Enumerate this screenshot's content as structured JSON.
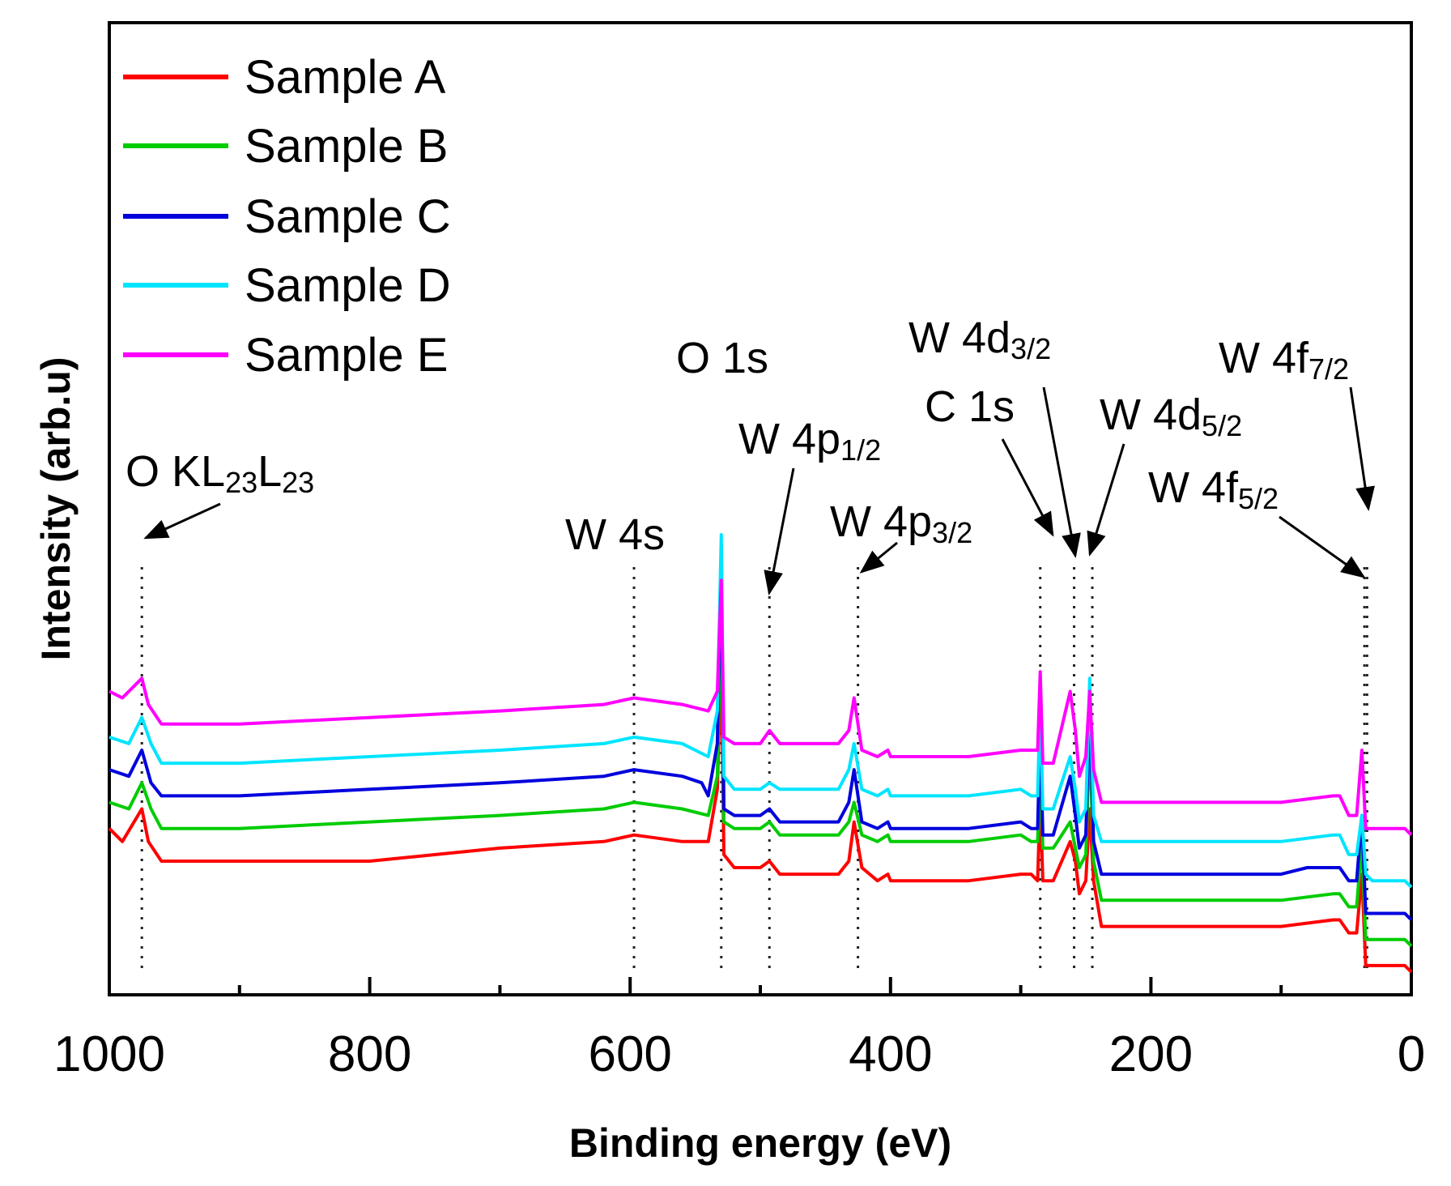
{
  "chart_data": {
    "type": "line",
    "title": "",
    "xlabel": "Binding energy (eV)",
    "ylabel": "Intensity (arb.u)",
    "xlim": [
      1000,
      0
    ],
    "x_reversed": true,
    "ylim": [
      0,
      100
    ],
    "x_ticks": [
      "1000",
      "800",
      "600",
      "400",
      "200",
      "0"
    ],
    "grid": false,
    "legend_position": "top-left",
    "series": [
      {
        "name": "Sample A",
        "color": "#ff0000",
        "points": [
          [
            1000,
            22
          ],
          [
            990,
            20
          ],
          [
            975,
            25
          ],
          [
            970,
            20
          ],
          [
            960,
            17
          ],
          [
            900,
            17
          ],
          [
            800,
            17
          ],
          [
            700,
            19
          ],
          [
            620,
            20
          ],
          [
            597,
            21
          ],
          [
            560,
            20
          ],
          [
            540,
            20
          ],
          [
            533,
            28
          ],
          [
            530,
            49
          ],
          [
            528,
            18
          ],
          [
            520,
            16
          ],
          [
            500,
            16
          ],
          [
            493,
            17
          ],
          [
            485,
            15
          ],
          [
            460,
            15
          ],
          [
            440,
            15
          ],
          [
            432,
            17
          ],
          [
            428,
            23
          ],
          [
            422,
            16
          ],
          [
            410,
            14
          ],
          [
            402,
            15
          ],
          [
            400,
            14
          ],
          [
            380,
            14
          ],
          [
            340,
            14
          ],
          [
            300,
            15
          ],
          [
            292,
            15
          ],
          [
            287,
            14
          ],
          [
            285,
            27
          ],
          [
            283,
            14
          ],
          [
            275,
            14
          ],
          [
            262,
            20
          ],
          [
            258,
            17
          ],
          [
            255,
            12
          ],
          [
            250,
            14
          ],
          [
            247,
            25
          ],
          [
            244,
            14
          ],
          [
            238,
            7
          ],
          [
            230,
            7
          ],
          [
            200,
            7
          ],
          [
            150,
            7
          ],
          [
            100,
            7
          ],
          [
            60,
            8
          ],
          [
            55,
            8
          ],
          [
            48,
            6
          ],
          [
            42,
            6
          ],
          [
            38,
            15
          ],
          [
            35,
            1
          ],
          [
            30,
            1
          ],
          [
            15,
            1
          ],
          [
            5,
            1
          ],
          [
            0,
            0
          ]
        ]
      },
      {
        "name": "Sample B",
        "color": "#00cc00",
        "points": [
          [
            1000,
            26
          ],
          [
            985,
            25
          ],
          [
            975,
            29
          ],
          [
            968,
            25
          ],
          [
            960,
            22
          ],
          [
            900,
            22
          ],
          [
            800,
            23
          ],
          [
            700,
            24
          ],
          [
            620,
            25
          ],
          [
            597,
            26
          ],
          [
            560,
            25
          ],
          [
            540,
            24
          ],
          [
            533,
            30
          ],
          [
            530,
            58
          ],
          [
            528,
            23
          ],
          [
            520,
            22
          ],
          [
            500,
            22
          ],
          [
            493,
            23
          ],
          [
            485,
            21
          ],
          [
            460,
            21
          ],
          [
            440,
            21
          ],
          [
            432,
            23
          ],
          [
            428,
            26
          ],
          [
            422,
            21
          ],
          [
            410,
            20
          ],
          [
            402,
            21
          ],
          [
            400,
            20
          ],
          [
            380,
            20
          ],
          [
            340,
            20
          ],
          [
            300,
            21
          ],
          [
            292,
            20
          ],
          [
            287,
            20
          ],
          [
            285,
            31
          ],
          [
            283,
            19
          ],
          [
            275,
            19
          ],
          [
            262,
            23
          ],
          [
            258,
            19
          ],
          [
            255,
            16
          ],
          [
            250,
            18
          ],
          [
            247,
            36
          ],
          [
            244,
            17
          ],
          [
            238,
            11
          ],
          [
            230,
            11
          ],
          [
            200,
            11
          ],
          [
            150,
            11
          ],
          [
            100,
            11
          ],
          [
            60,
            12
          ],
          [
            55,
            12
          ],
          [
            48,
            10
          ],
          [
            42,
            10
          ],
          [
            38,
            20
          ],
          [
            35,
            5
          ],
          [
            30,
            5
          ],
          [
            15,
            5
          ],
          [
            5,
            5
          ],
          [
            0,
            4
          ]
        ]
      },
      {
        "name": "Sample C",
        "color": "#0000dd",
        "points": [
          [
            1000,
            31
          ],
          [
            985,
            30
          ],
          [
            975,
            34
          ],
          [
            968,
            29
          ],
          [
            960,
            27
          ],
          [
            900,
            27
          ],
          [
            800,
            28
          ],
          [
            700,
            29
          ],
          [
            620,
            30
          ],
          [
            597,
            31
          ],
          [
            560,
            30
          ],
          [
            545,
            29
          ],
          [
            540,
            27
          ],
          [
            533,
            35
          ],
          [
            530,
            65
          ],
          [
            528,
            25
          ],
          [
            520,
            24
          ],
          [
            500,
            24
          ],
          [
            493,
            25
          ],
          [
            485,
            23
          ],
          [
            460,
            23
          ],
          [
            440,
            23
          ],
          [
            432,
            26
          ],
          [
            428,
            31
          ],
          [
            422,
            23
          ],
          [
            410,
            22
          ],
          [
            402,
            23
          ],
          [
            400,
            22
          ],
          [
            380,
            22
          ],
          [
            340,
            22
          ],
          [
            300,
            23
          ],
          [
            292,
            22
          ],
          [
            287,
            22
          ],
          [
            285,
            37
          ],
          [
            283,
            21
          ],
          [
            275,
            21
          ],
          [
            262,
            30
          ],
          [
            258,
            24
          ],
          [
            255,
            19
          ],
          [
            250,
            21
          ],
          [
            247,
            41
          ],
          [
            244,
            20
          ],
          [
            238,
            15
          ],
          [
            230,
            15
          ],
          [
            200,
            15
          ],
          [
            150,
            15
          ],
          [
            100,
            15
          ],
          [
            80,
            16
          ],
          [
            60,
            16
          ],
          [
            55,
            16
          ],
          [
            48,
            14
          ],
          [
            42,
            14
          ],
          [
            38,
            24
          ],
          [
            35,
            9
          ],
          [
            30,
            9
          ],
          [
            15,
            9
          ],
          [
            5,
            9
          ],
          [
            0,
            8
          ]
        ]
      },
      {
        "name": "Sample D",
        "color": "#00e5ff",
        "points": [
          [
            1000,
            36
          ],
          [
            985,
            35
          ],
          [
            975,
            39
          ],
          [
            968,
            35
          ],
          [
            960,
            32
          ],
          [
            900,
            32
          ],
          [
            800,
            33
          ],
          [
            700,
            34
          ],
          [
            620,
            35
          ],
          [
            597,
            36
          ],
          [
            560,
            35
          ],
          [
            540,
            33
          ],
          [
            533,
            40
          ],
          [
            530,
            67
          ],
          [
            528,
            30
          ],
          [
            520,
            28
          ],
          [
            500,
            28
          ],
          [
            493,
            29
          ],
          [
            485,
            28
          ],
          [
            460,
            28
          ],
          [
            440,
            28
          ],
          [
            432,
            31
          ],
          [
            428,
            35
          ],
          [
            422,
            28
          ],
          [
            410,
            27
          ],
          [
            402,
            28
          ],
          [
            400,
            27
          ],
          [
            380,
            27
          ],
          [
            340,
            27
          ],
          [
            300,
            28
          ],
          [
            292,
            27
          ],
          [
            287,
            27
          ],
          [
            285,
            42
          ],
          [
            283,
            25
          ],
          [
            275,
            25
          ],
          [
            262,
            33
          ],
          [
            258,
            28
          ],
          [
            255,
            23
          ],
          [
            250,
            25
          ],
          [
            247,
            45
          ],
          [
            244,
            24
          ],
          [
            238,
            20
          ],
          [
            230,
            20
          ],
          [
            200,
            20
          ],
          [
            150,
            20
          ],
          [
            100,
            20
          ],
          [
            60,
            21
          ],
          [
            55,
            21
          ],
          [
            48,
            18
          ],
          [
            42,
            18
          ],
          [
            38,
            24
          ],
          [
            35,
            15
          ],
          [
            30,
            14
          ],
          [
            15,
            14
          ],
          [
            5,
            14
          ],
          [
            0,
            13
          ]
        ]
      },
      {
        "name": "Sample E",
        "color": "#ff00ff",
        "points": [
          [
            1000,
            43
          ],
          [
            990,
            42
          ],
          [
            975,
            45
          ],
          [
            970,
            41
          ],
          [
            960,
            38
          ],
          [
            900,
            38
          ],
          [
            800,
            39
          ],
          [
            700,
            40
          ],
          [
            620,
            41
          ],
          [
            597,
            42
          ],
          [
            560,
            41
          ],
          [
            540,
            40
          ],
          [
            533,
            43
          ],
          [
            530,
            60
          ],
          [
            528,
            36
          ],
          [
            520,
            35
          ],
          [
            500,
            35
          ],
          [
            493,
            37
          ],
          [
            485,
            35
          ],
          [
            460,
            35
          ],
          [
            440,
            35
          ],
          [
            432,
            37
          ],
          [
            428,
            42
          ],
          [
            422,
            34
          ],
          [
            410,
            33
          ],
          [
            402,
            34
          ],
          [
            400,
            33
          ],
          [
            380,
            33
          ],
          [
            340,
            33
          ],
          [
            300,
            34
          ],
          [
            292,
            34
          ],
          [
            287,
            34
          ],
          [
            285,
            46
          ],
          [
            283,
            32
          ],
          [
            275,
            32
          ],
          [
            262,
            43
          ],
          [
            258,
            37
          ],
          [
            255,
            30
          ],
          [
            250,
            33
          ],
          [
            247,
            43
          ],
          [
            244,
            31
          ],
          [
            238,
            26
          ],
          [
            230,
            26
          ],
          [
            200,
            26
          ],
          [
            150,
            26
          ],
          [
            100,
            26
          ],
          [
            60,
            27
          ],
          [
            55,
            27
          ],
          [
            48,
            24
          ],
          [
            42,
            24
          ],
          [
            38,
            34
          ],
          [
            35,
            22
          ],
          [
            30,
            22
          ],
          [
            15,
            22
          ],
          [
            5,
            22
          ],
          [
            0,
            21
          ]
        ]
      }
    ],
    "peak_markers": [
      {
        "label": "O KL23L23",
        "x": 975
      },
      {
        "label": "W 4s",
        "x": 597
      },
      {
        "label": "O 1s",
        "x": 530
      },
      {
        "label": "W 4p1/2",
        "x": 493
      },
      {
        "label": "W 4p3/2",
        "x": 425
      },
      {
        "label": "C 1s",
        "x": 285
      },
      {
        "label": "W 4d3/2",
        "x": 259
      },
      {
        "label": "W 4d5/2",
        "x": 245
      },
      {
        "label": "W 4f5/2",
        "x": 36
      },
      {
        "label": "W 4f7/2",
        "x": 34
      }
    ],
    "annotations": {
      "o_kll": {
        "main": "O KL",
        "sub1": "23",
        "mid": "L",
        "sub2": "23"
      },
      "w4s": "W 4s",
      "o1s": "O 1s",
      "w4p12": {
        "main": "W 4p",
        "sub": "1/2"
      },
      "w4p32": {
        "main": "W 4p",
        "sub": "3/2"
      },
      "c1s": "C 1s",
      "w4d32": {
        "main": "W 4d",
        "sub": "3/2"
      },
      "w4d52": {
        "main": "W 4d",
        "sub": "5/2"
      },
      "w4f52": {
        "main": "W 4f",
        "sub": "5/2"
      },
      "w4f72": {
        "main": "W 4f",
        "sub": "7/2"
      }
    }
  }
}
